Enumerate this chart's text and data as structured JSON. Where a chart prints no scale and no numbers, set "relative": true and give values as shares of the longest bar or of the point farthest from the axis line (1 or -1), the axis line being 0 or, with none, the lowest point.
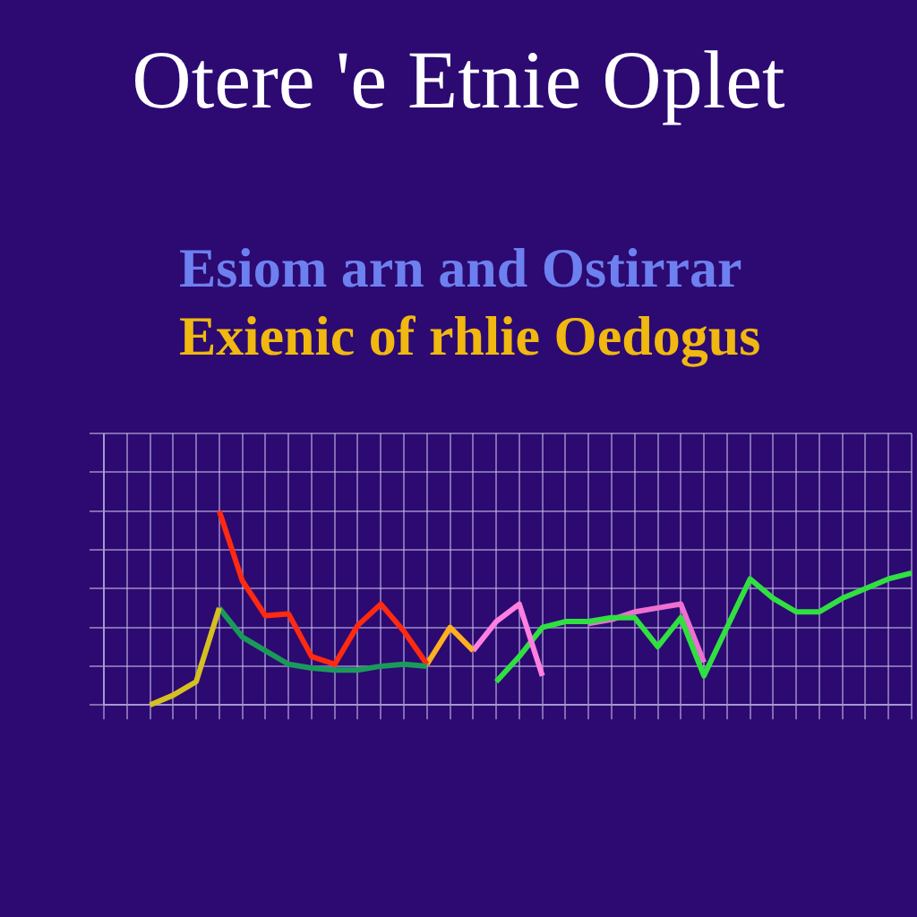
{
  "chart_data": {
    "type": "line",
    "title": "Otere 'e Etnie Oplet",
    "subtitle": "Esiom arn and Ostirrar",
    "annotations": [
      "Exienic of rhlie Oedogus"
    ],
    "categories": [
      null,
      null,
      null,
      null,
      null,
      null,
      null,
      null,
      null,
      null,
      null,
      null,
      null,
      null,
      null,
      null,
      null,
      null,
      null,
      null,
      null,
      null,
      null,
      null,
      null,
      null,
      null,
      null,
      null,
      null,
      null,
      null,
      null,
      null,
      null,
      null
    ],
    "relative": true,
    "grid": true,
    "legend": false,
    "marker": "none",
    "series": [
      {
        "color": "#d4c020",
        "values": [
          null,
          null,
          0,
          0.05,
          0.12,
          0.5,
          null,
          null,
          null,
          null,
          null,
          null,
          null,
          null,
          null,
          null,
          null,
          null,
          null,
          null,
          null,
          null,
          null,
          null,
          null,
          null,
          null,
          null,
          null,
          null,
          null,
          null,
          null,
          null,
          null,
          null
        ]
      },
      {
        "color": "#1a9a5a",
        "values": [
          null,
          null,
          null,
          null,
          null,
          0.5,
          0.35,
          0.28,
          0.21,
          0.19,
          0.18,
          0.18,
          0.2,
          0.21,
          0.2,
          null,
          null,
          null,
          null,
          null,
          null,
          null,
          null,
          null,
          null,
          null,
          null,
          null,
          null,
          null,
          null,
          null,
          null,
          null,
          null,
          null
        ]
      },
      {
        "color": "#ff2a10",
        "values": [
          null,
          null,
          null,
          null,
          null,
          1,
          0.64,
          0.46,
          0.47,
          0.25,
          0.21,
          0.41,
          0.52,
          0.38,
          0.21,
          null,
          null,
          null,
          null,
          null,
          null,
          null,
          null,
          null,
          null,
          null,
          null,
          null,
          null,
          null,
          null,
          null,
          null,
          null,
          null,
          null
        ]
      },
      {
        "color": "#ffb020",
        "values": [
          null,
          null,
          null,
          null,
          null,
          null,
          null,
          null,
          null,
          null,
          null,
          null,
          null,
          null,
          0.21,
          0.4,
          0.28,
          null,
          null,
          null,
          null,
          null,
          null,
          null,
          null,
          null,
          null,
          null,
          null,
          null,
          null,
          null,
          null,
          null,
          null,
          null
        ]
      },
      {
        "color": "#ff80e0",
        "values": [
          null,
          null,
          null,
          null,
          null,
          null,
          null,
          null,
          null,
          null,
          null,
          null,
          null,
          null,
          null,
          null,
          0.28,
          0.43,
          0.52,
          0.15,
          null,
          null,
          null,
          null,
          null,
          null,
          null,
          null,
          null,
          null,
          null,
          null,
          null,
          null,
          null,
          null
        ]
      },
      {
        "color": "#30e040",
        "values": [
          null,
          null,
          null,
          null,
          null,
          null,
          null,
          null,
          null,
          null,
          null,
          null,
          null,
          null,
          null,
          null,
          null,
          0.12,
          0.25,
          0.4,
          0.43,
          0.43,
          0.45,
          0.45,
          0.3,
          0.45,
          0.15,
          0.4,
          0.65,
          0.55,
          0.48,
          0.48,
          0.55,
          0.6,
          0.65,
          0.68
        ]
      },
      {
        "color": "#ee70d0",
        "values": [
          null,
          null,
          null,
          null,
          null,
          null,
          null,
          null,
          null,
          null,
          null,
          null,
          null,
          null,
          null,
          null,
          null,
          null,
          null,
          null,
          null,
          0.42,
          0.44,
          0.48,
          0.5,
          0.52,
          0.22,
          null,
          null,
          null,
          null,
          null,
          null,
          null,
          null,
          null
        ]
      }
    ]
  }
}
